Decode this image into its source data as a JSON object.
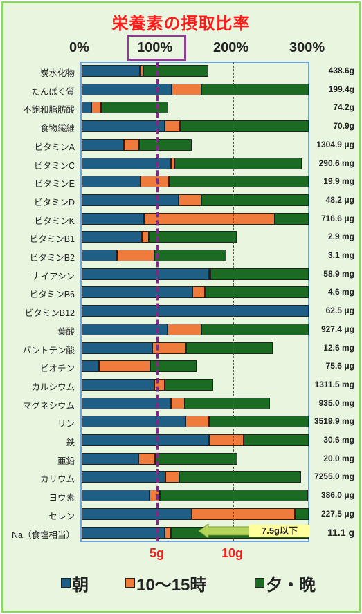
{
  "chart_data": {
    "type": "bar",
    "orientation": "horizontal",
    "stacked": true,
    "title": "栄養素の摂取比率",
    "x_ticks": [
      "0%",
      "100%",
      "200%",
      "300%"
    ],
    "xlim": [
      0,
      300
    ],
    "reference_line": 100,
    "grid": "dashed vertical at 200%",
    "sodium_markers": [
      {
        "label": "5g",
        "value": 100
      },
      {
        "label": "10g",
        "value": 200
      }
    ],
    "callout": "7.5g以下",
    "categories": [
      "炭水化物",
      "たんぱく質",
      "不飽和脂肪酸",
      "食物繊維",
      "ビタミンA",
      "ビタミンC",
      "ビタミンE",
      "ビタミンD",
      "ビタミンK",
      "ビタミンB1",
      "ビタミンB2",
      "ナイアシン",
      "ビタミンB6",
      "ビタミンB12",
      "葉酸",
      "パントテン酸",
      "ビオチン",
      "カルシウム",
      "マグネシウム",
      "リン",
      "鉄",
      "亜鉛",
      "カリウム",
      "ヨウ素",
      "セレン",
      "Na（食塩相当）"
    ],
    "amounts": [
      "438.6g",
      "199.4g",
      "74.2g",
      "70.9g",
      "1304.9 μg",
      "290.6 mg",
      "19.9 mg",
      "48.2 μg",
      "716.6 μg",
      "2.9 mg",
      "3.1 mg",
      "58.9 mg",
      "4.6 mg",
      "62.5 μg",
      "927.4 μg",
      "12.6 mg",
      "75.6 μg",
      "1311.5 mg",
      "935.0 mg",
      "3519.9 mg",
      "30.6 mg",
      "20.0 mg",
      "7255.0 mg",
      "386.0 μg",
      "227.5 μg",
      "11.1 g"
    ],
    "series": [
      {
        "name": "朝",
        "color": "#1f5f86",
        "values": [
          77,
          119,
          13,
          110,
          56,
          118,
          78,
          128,
          82,
          80,
          47,
          168,
          146,
          300,
          113,
          93,
          23,
          96,
          118,
          137,
          168,
          75,
          111,
          90,
          145,
          110
        ]
      },
      {
        "name": "10〜15時",
        "color": "#ef7c3c",
        "values": [
          4,
          39,
          13,
          20,
          20,
          5,
          37,
          30,
          173,
          9,
          49,
          2,
          17,
          0,
          45,
          45,
          68,
          14,
          18,
          31,
          46,
          22,
          18,
          13,
          137,
          8
        ]
      },
      {
        "name": "夕・晩",
        "color": "#1c6b23",
        "values": [
          86,
          142,
          88,
          170,
          69,
          168,
          185,
          142,
          45,
          116,
          95,
          130,
          137,
          0,
          142,
          114,
          61,
          64,
          113,
          132,
          86,
          109,
          161,
          196,
          18,
          182
        ]
      }
    ]
  }
}
